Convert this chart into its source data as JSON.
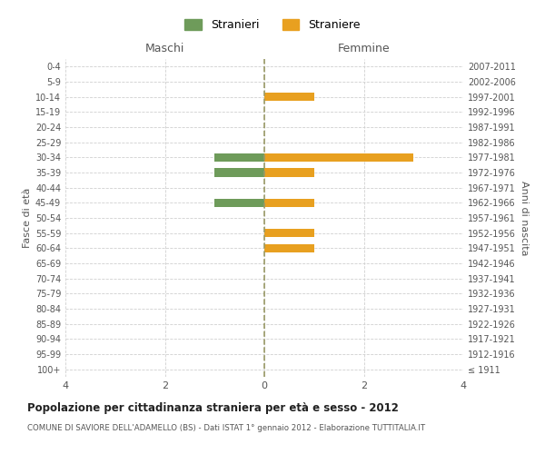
{
  "age_groups": [
    "100+",
    "95-99",
    "90-94",
    "85-89",
    "80-84",
    "75-79",
    "70-74",
    "65-69",
    "60-64",
    "55-59",
    "50-54",
    "45-49",
    "40-44",
    "35-39",
    "30-34",
    "25-29",
    "20-24",
    "15-19",
    "10-14",
    "5-9",
    "0-4"
  ],
  "birth_years": [
    "≤ 1911",
    "1912-1916",
    "1917-1921",
    "1922-1926",
    "1927-1931",
    "1932-1936",
    "1937-1941",
    "1942-1946",
    "1947-1951",
    "1952-1956",
    "1957-1961",
    "1962-1966",
    "1967-1971",
    "1972-1976",
    "1977-1981",
    "1982-1986",
    "1987-1991",
    "1992-1996",
    "1997-2001",
    "2002-2006",
    "2007-2011"
  ],
  "stranieri": [
    0,
    0,
    0,
    0,
    0,
    0,
    0,
    0,
    0,
    0,
    0,
    1,
    0,
    1,
    1,
    0,
    0,
    0,
    0,
    0,
    0
  ],
  "straniere": [
    0,
    0,
    0,
    0,
    0,
    0,
    0,
    0,
    1,
    1,
    0,
    1,
    0,
    1,
    3,
    0,
    0,
    0,
    1,
    0,
    0
  ],
  "color_stranieri": "#6e9b5a",
  "color_straniere": "#e8a020",
  "title": "Popolazione per cittadinanza straniera per età e sesso - 2012",
  "subtitle": "COMUNE DI SAVIORE DELL'ADAMELLO (BS) - Dati ISTAT 1° gennaio 2012 - Elaborazione TUTTITALIA.IT",
  "xlabel_left": "Maschi",
  "xlabel_right": "Femmine",
  "ylabel_left": "Fasce di età",
  "ylabel_right": "Anni di nascita",
  "legend_stranieri": "Stranieri",
  "legend_straniere": "Straniere",
  "xlim": 4,
  "background_color": "#ffffff",
  "grid_color": "#d0d0d0"
}
